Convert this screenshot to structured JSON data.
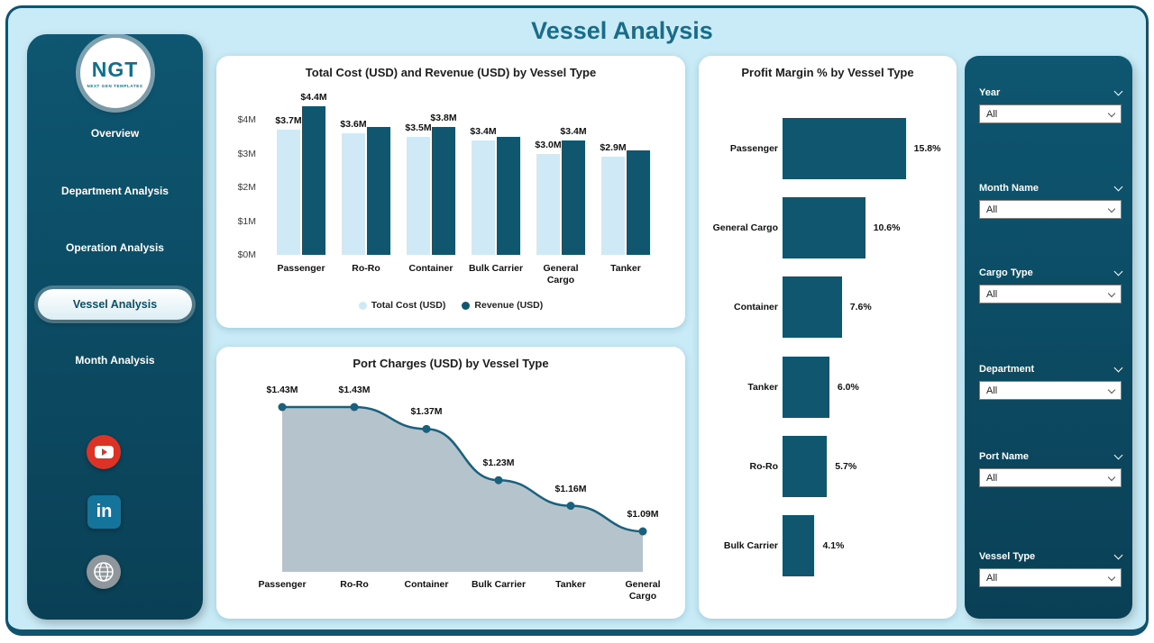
{
  "header": {
    "title": "Vessel Analysis"
  },
  "logo": {
    "name": "NGT",
    "tagline": "NEXT GEN TEMPLATES"
  },
  "sidebar": {
    "items": [
      {
        "label": "Overview",
        "active": false
      },
      {
        "label": "Department Analysis",
        "active": false
      },
      {
        "label": "Operation Analysis",
        "active": false
      },
      {
        "label": "Vessel Analysis",
        "active": true
      },
      {
        "label": "Month Analysis",
        "active": false
      }
    ],
    "social": [
      {
        "name": "youtube"
      },
      {
        "name": "linkedin",
        "glyph": "in"
      },
      {
        "name": "website"
      }
    ]
  },
  "filters": [
    {
      "label": "Year",
      "value": "All"
    },
    {
      "label": "Month Name",
      "value": "All"
    },
    {
      "label": "Cargo Type",
      "value": "All"
    },
    {
      "label": "Department",
      "value": "All"
    },
    {
      "label": "Port Name",
      "value": "All"
    },
    {
      "label": "Vessel Type",
      "value": "All"
    }
  ],
  "colors": {
    "dark_teal": "#0d4f68",
    "cost_bar": "#cfe9f7",
    "revenue_bar": "#10566f",
    "profit_bar": "#10566f",
    "area_fill": "#b5c3cd",
    "line": "#1b607c",
    "page_bg": "#c9ebf7",
    "title": "#1a6c88"
  },
  "chart_data": [
    {
      "type": "bar",
      "title": "Total Cost (USD) and Revenue (USD) by Vessel Type",
      "categories": [
        "Passenger",
        "Ro-Ro",
        "Container",
        "Bulk Carrier",
        "General Cargo",
        "Tanker"
      ],
      "series": [
        {
          "name": "Total Cost (USD)",
          "color": "#cfe9f7",
          "values": [
            3.7,
            3.6,
            3.5,
            3.4,
            3.0,
            2.9
          ],
          "labels": [
            "$3.7M",
            "$3.6M",
            "$3.5M",
            "$3.4M",
            "$3.0M",
            "$2.9M"
          ]
        },
        {
          "name": "Revenue (USD)",
          "color": "#10566f",
          "values": [
            4.4,
            3.8,
            3.8,
            3.5,
            3.4,
            3.1
          ],
          "labels": [
            "$4.4M",
            "",
            "$3.8M",
            "",
            "$3.4M",
            ""
          ]
        }
      ],
      "y_ticks": [
        "$0M",
        "$1M",
        "$2M",
        "$3M",
        "$4M"
      ],
      "ylim": [
        0,
        4.4
      ],
      "grid": false,
      "legend_position": "bottom"
    },
    {
      "type": "area",
      "title": "Port Charges (USD) by Vessel Type",
      "categories": [
        "Passenger",
        "Ro-Ro",
        "Container",
        "Bulk Carrier",
        "Tanker",
        "General Cargo"
      ],
      "values": [
        1.43,
        1.43,
        1.37,
        1.23,
        1.16,
        1.09
      ],
      "labels": [
        "$1.43M",
        "$1.43M",
        "$1.37M",
        "$1.23M",
        "$1.16M",
        "$1.09M"
      ]
    },
    {
      "type": "bar",
      "orientation": "horizontal",
      "title": "Profit Margin % by Vessel Type",
      "categories": [
        "Passenger",
        "General Cargo",
        "Container",
        "Tanker",
        "Ro-Ro",
        "Bulk Carrier"
      ],
      "values": [
        15.8,
        10.6,
        7.6,
        6.0,
        5.7,
        4.1
      ],
      "labels": [
        "15.8%",
        "10.6%",
        "7.6%",
        "6.0%",
        "5.7%",
        "4.1%"
      ]
    }
  ]
}
